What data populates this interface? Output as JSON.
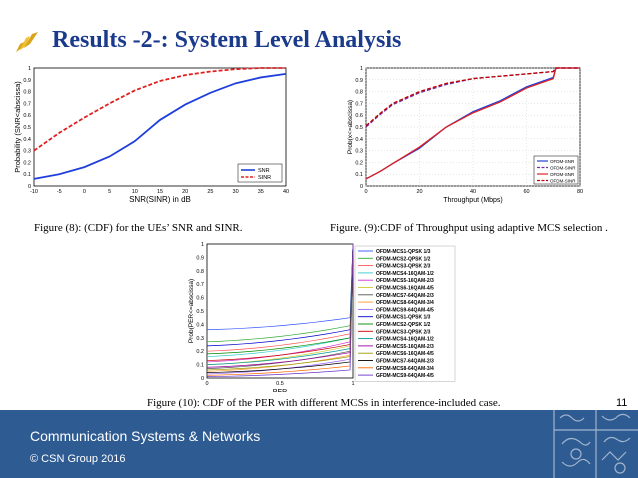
{
  "slide": {
    "title": "Results -2-: System Level Analysis",
    "slide_number": "11"
  },
  "footer": {
    "org": "Communication Systems & Networks",
    "copyright": "© CSN Group 2016"
  },
  "captions": {
    "fig8": "Figure (8): (CDF) for the UEs’ SNR and SINR.",
    "fig9": "Figure. (9):CDF of Throughput using adaptive MCS selection .",
    "fig10": "Figure (10): CDF of the PER with different MCSs in interference-included case."
  },
  "colors": {
    "title": "#1a3a8c",
    "footer": "#2e5b92"
  },
  "chart_data": [
    {
      "type": "line",
      "xlabel": "SNR(SINR) in dB",
      "ylabel": "Probability (SNR<abscissa)",
      "xlim": [
        -10,
        40
      ],
      "ylim": [
        0,
        1
      ],
      "xticks": [
        "-10",
        "-5",
        "0",
        "5",
        "10",
        "15",
        "20",
        "25",
        "30",
        "35",
        "40"
      ],
      "yticks": [
        "0",
        "0.1",
        "0.2",
        "0.3",
        "0.4",
        "0.5",
        "0.6",
        "0.7",
        "0.8",
        "0.9",
        "1"
      ],
      "grid": false,
      "legend": "bottom-right",
      "series": [
        {
          "name": "SNR",
          "color": "#1f3fdc",
          "dash": false,
          "x": [
            -10,
            -5,
            0,
            5,
            10,
            15,
            20,
            25,
            30,
            35,
            40
          ],
          "y": [
            0.06,
            0.1,
            0.16,
            0.25,
            0.38,
            0.56,
            0.69,
            0.79,
            0.87,
            0.92,
            0.95
          ]
        },
        {
          "name": "SINR",
          "color": "#e02020",
          "dash": true,
          "x": [
            -10,
            -5,
            0,
            5,
            10,
            15,
            20,
            25,
            30,
            35,
            40
          ],
          "y": [
            0.3,
            0.45,
            0.58,
            0.7,
            0.81,
            0.89,
            0.94,
            0.97,
            0.99,
            1.0,
            1.0
          ]
        }
      ]
    },
    {
      "type": "line",
      "xlabel": "Throughput (Mbps)",
      "ylabel": "Prob(x<=abscissa)",
      "xlim": [
        0,
        80
      ],
      "ylim": [
        0,
        1
      ],
      "xticks": [
        "0",
        "20",
        "40",
        "60",
        "80"
      ],
      "yticks": [
        "0",
        "0.1",
        "0.2",
        "0.3",
        "0.4",
        "0.5",
        "0.6",
        "0.7",
        "0.8",
        "0.9",
        "1"
      ],
      "grid": true,
      "legend": "bottom-right",
      "series": [
        {
          "name": "OFDM-SNR",
          "color": "#1f3fdc",
          "dash": false,
          "x": [
            0,
            5,
            10,
            20,
            30,
            40,
            50,
            60,
            70,
            71,
            80
          ],
          "y": [
            0.06,
            0.12,
            0.19,
            0.32,
            0.5,
            0.63,
            0.72,
            0.84,
            0.92,
            1.0,
            1.0
          ]
        },
        {
          "name": "OFDM-SINR",
          "color": "#7030a0",
          "dash": true,
          "x": [
            0,
            5,
            10,
            20,
            30,
            40,
            50,
            60,
            70,
            71,
            80
          ],
          "y": [
            0.5,
            0.6,
            0.69,
            0.79,
            0.86,
            0.91,
            0.93,
            0.95,
            0.97,
            1.0,
            1.0
          ]
        },
        {
          "name": "OFDM-SNR",
          "color": "#e02020",
          "dash": false,
          "x": [
            0,
            5,
            10,
            20,
            30,
            40,
            50,
            60,
            70,
            71,
            80
          ],
          "y": [
            0.06,
            0.12,
            0.19,
            0.33,
            0.5,
            0.62,
            0.71,
            0.83,
            0.91,
            1.0,
            1.0
          ]
        },
        {
          "name": "OFDM-SINR",
          "color": "#c00000",
          "dash": true,
          "x": [
            0,
            5,
            10,
            20,
            30,
            40,
            50,
            60,
            70,
            71,
            80
          ],
          "y": [
            0.51,
            0.61,
            0.7,
            0.8,
            0.87,
            0.91,
            0.93,
            0.95,
            0.97,
            1.0,
            1.0
          ]
        }
      ]
    },
    {
      "type": "line",
      "xlabel": "PER",
      "ylabel": "Prob(PER<=abscissa)",
      "xlim": [
        0,
        1
      ],
      "ylim": [
        0,
        1
      ],
      "xticks": [
        "0",
        "0.5",
        "1"
      ],
      "yticks": [
        "0",
        "0.1",
        "0.2",
        "0.3",
        "0.4",
        "0.5",
        "0.6",
        "0.7",
        "0.8",
        "0.9",
        "1"
      ],
      "grid": false,
      "legend": "right",
      "series": [
        {
          "name": "OFDM-MCS1-QPSK 1/3",
          "color": "#3355ff",
          "start": 0.36,
          "end": 0.45
        },
        {
          "name": "OFDM-MCS2-QPSK 1/2",
          "color": "#33aa33",
          "start": 0.27,
          "end": 0.39
        },
        {
          "name": "OFDM-MCS3-QPSK 2/3",
          "color": "#ff5555",
          "start": 0.2,
          "end": 0.33
        },
        {
          "name": "OFDM-MCS4-16QAM-1/2",
          "color": "#33cccc",
          "start": 0.16,
          "end": 0.3
        },
        {
          "name": "OFDM-MCS5-16QAM-2/3",
          "color": "#cc33cc",
          "start": 0.12,
          "end": 0.27
        },
        {
          "name": "OFDM-MCS6-16QAM-4/5",
          "color": "#cccc33",
          "start": 0.1,
          "end": 0.24
        },
        {
          "name": "OFDM-MCS7-64QAM-2/3",
          "color": "#555555",
          "start": 0.07,
          "end": 0.2
        },
        {
          "name": "OFDM-MCS8-64QAM-3/4",
          "color": "#ff9933",
          "start": 0.05,
          "end": 0.17
        },
        {
          "name": "OFDM-MCS9-64QAM-4/5",
          "color": "#9966ff",
          "start": 0.03,
          "end": 0.14
        },
        {
          "name": "GFDM-MCS1-QPSK 1/3",
          "color": "#0000cc",
          "start": 0.24,
          "end": 0.36
        },
        {
          "name": "GFDM-MCS2-QPSK 1/2",
          "color": "#008800",
          "start": 0.18,
          "end": 0.3
        },
        {
          "name": "GFDM-MCS3-QPSK 2/3",
          "color": "#cc0000",
          "start": 0.13,
          "end": 0.25
        },
        {
          "name": "GFDM-MCS4-16QAM-1/2",
          "color": "#009999",
          "start": 0.1,
          "end": 0.22
        },
        {
          "name": "GFDM-MCS5-16QAM-2/3",
          "color": "#990099",
          "start": 0.08,
          "end": 0.19
        },
        {
          "name": "GFDM-MCS6-16QAM-4/5",
          "color": "#999900",
          "start": 0.06,
          "end": 0.16
        },
        {
          "name": "GFDM-MCS7-64QAM-2/3",
          "color": "#000000",
          "start": 0.04,
          "end": 0.12
        },
        {
          "name": "GFDM-MCS8-64QAM-3/4",
          "color": "#ff6600",
          "start": 0.02,
          "end": 0.09
        },
        {
          "name": "GFDM-MCS9-64QAM-4/5",
          "color": "#6633cc",
          "start": 0.01,
          "end": 0.06
        }
      ]
    }
  ]
}
